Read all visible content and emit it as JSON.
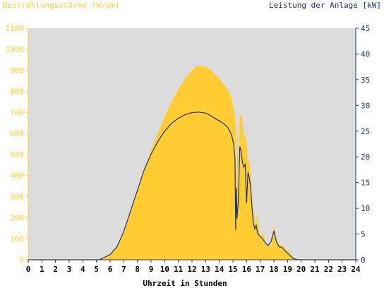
{
  "chart_data": {
    "type": "area",
    "y_left_label": "Bestrahlungsstärke [W/qm]",
    "y_right_label": "Leistung der Anlage [kW]",
    "xlabel": "Uhrzeit in Stunden",
    "xlim": [
      0,
      24
    ],
    "ylim_left": [
      0,
      1100
    ],
    "ylim_right": [
      0,
      45
    ],
    "x_ticks": [
      "0",
      "1",
      "2",
      "3",
      "4",
      "5",
      "6",
      "7",
      "8",
      "9",
      "10",
      "11",
      "12",
      "13",
      "14",
      "15",
      "16",
      "17",
      "18",
      "19",
      "20",
      "21",
      "22",
      "23",
      "24"
    ],
    "y_left_ticks": [
      "0",
      "100",
      "200",
      "300",
      "400",
      "500",
      "600",
      "700",
      "800",
      "900",
      "1000",
      "1100"
    ],
    "y_right_ticks": [
      "0",
      "5",
      "10",
      "15",
      "20",
      "25",
      "30",
      "35",
      "40",
      "45"
    ],
    "grid": false,
    "colors": {
      "irradiance": "#ffcc33",
      "power": "#1f3570",
      "plot_bg": "#dcdcdc"
    },
    "series": [
      {
        "key": "irradiance",
        "axis": "left",
        "x": [
          0,
          5.0,
          5.5,
          6.0,
          6.5,
          7.0,
          7.5,
          8.0,
          8.5,
          9.0,
          9.5,
          10.0,
          10.5,
          11.0,
          11.5,
          12.0,
          12.3,
          12.6,
          13.0,
          13.3,
          13.6,
          14.0,
          14.3,
          14.6,
          14.9,
          15.0,
          15.1,
          15.2,
          15.25,
          15.3,
          15.35,
          15.4,
          15.5,
          15.6,
          15.7,
          15.8,
          15.9,
          16.0,
          16.1,
          16.2,
          16.3,
          16.4,
          16.5,
          16.6,
          16.7,
          16.8,
          17.0,
          17.2,
          17.4,
          17.6,
          17.8,
          18.0,
          18.2,
          18.4,
          18.6,
          18.8,
          19.0,
          19.2,
          19.4,
          19.6,
          19.8,
          20.0,
          20.5,
          21,
          24
        ],
        "y": [
          0,
          0,
          10,
          25,
          60,
          130,
          230,
          330,
          430,
          520,
          600,
          680,
          750,
          810,
          860,
          900,
          918,
          922,
          918,
          905,
          885,
          860,
          835,
          810,
          770,
          735,
          700,
          650,
          150,
          620,
          650,
          250,
          690,
          690,
          670,
          580,
          600,
          550,
          450,
          480,
          420,
          300,
          220,
          200,
          150,
          220,
          100,
          130,
          80,
          70,
          60,
          160,
          100,
          70,
          70,
          55,
          45,
          30,
          15,
          5,
          2,
          0,
          0,
          0,
          0
        ]
      },
      {
        "key": "power",
        "axis": "right",
        "x": [
          0,
          5.2,
          5.6,
          6.0,
          6.5,
          7.0,
          7.5,
          8.0,
          8.5,
          9.0,
          9.5,
          10.0,
          10.5,
          11.0,
          11.5,
          12.0,
          12.5,
          13.0,
          13.3,
          13.6,
          14.0,
          14.3,
          14.6,
          14.9,
          15.05,
          15.15,
          15.2,
          15.25,
          15.3,
          15.4,
          15.5,
          15.6,
          15.7,
          15.8,
          15.9,
          16.0,
          16.1,
          16.2,
          16.3,
          16.4,
          16.5,
          16.6,
          16.7,
          16.8,
          17.0,
          17.2,
          17.4,
          17.6,
          17.8,
          18.0,
          18.2,
          18.4,
          18.6,
          18.8,
          19.0,
          19.2,
          19.4,
          19.6,
          19.8,
          20.0,
          24
        ],
        "y": [
          0,
          0,
          0.5,
          1,
          2.5,
          5.5,
          9.5,
          13.5,
          17.5,
          20.5,
          23,
          25,
          26.5,
          27.5,
          28.2,
          28.6,
          28.7,
          28.5,
          28.1,
          27.6,
          27,
          26.5,
          25.8,
          24.3,
          22.5,
          19.5,
          5.8,
          14,
          8,
          11.5,
          22,
          21,
          19,
          18,
          18.5,
          11,
          17,
          16,
          14,
          10,
          7,
          6,
          6.8,
          5.2,
          4.5,
          4,
          3.2,
          2.8,
          3.6,
          5.6,
          3.4,
          2.5,
          2.4,
          1.8,
          1.3,
          0.8,
          0.3,
          0.1,
          0,
          0,
          0
        ]
      }
    ]
  }
}
